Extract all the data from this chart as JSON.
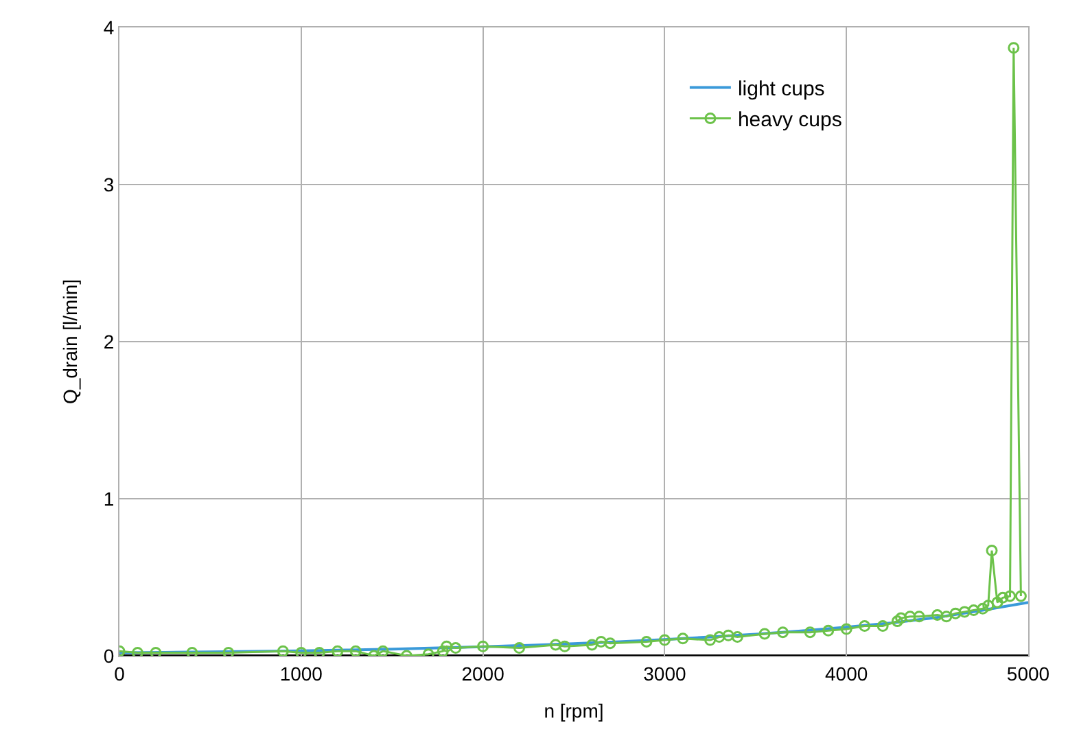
{
  "chart_data": {
    "type": "line",
    "xlabel": "n [rpm]",
    "ylabel": "Q_drain [l/min]",
    "xlim": [
      0,
      5000
    ],
    "ylim": [
      0,
      4
    ],
    "xticks": [
      0,
      1000,
      2000,
      3000,
      4000,
      5000
    ],
    "yticks": [
      0,
      1,
      2,
      3,
      4
    ],
    "grid": true,
    "legend": "top right",
    "series": [
      {
        "name": "light cups",
        "color": "#3a9ad9",
        "marker": "none",
        "x": [
          0,
          250,
          500,
          750,
          1000,
          1250,
          1500,
          1750,
          2000,
          2250,
          2500,
          2750,
          3000,
          3250,
          3500,
          3750,
          4000,
          4250,
          4500,
          4750,
          5000
        ],
        "values": [
          0.02,
          0.022,
          0.025,
          0.028,
          0.032,
          0.037,
          0.043,
          0.05,
          0.058,
          0.067,
          0.078,
          0.09,
          0.104,
          0.12,
          0.138,
          0.158,
          0.182,
          0.21,
          0.245,
          0.29,
          0.34
        ]
      },
      {
        "name": "heavy cups",
        "color": "#6cc24a",
        "marker": "circle",
        "x": [
          0,
          100,
          200,
          400,
          600,
          900,
          1000,
          1100,
          1200,
          1300,
          1400,
          1450,
          1580,
          1700,
          1780,
          1800,
          1850,
          2000,
          2200,
          2400,
          2450,
          2600,
          2650,
          2700,
          2900,
          3000,
          3100,
          3250,
          3300,
          3350,
          3400,
          3550,
          3650,
          3800,
          3900,
          4000,
          4100,
          4200,
          4280,
          4300,
          4350,
          4400,
          4500,
          4550,
          4600,
          4650,
          4700,
          4750,
          4780,
          4800,
          4830,
          4860,
          4900,
          4920,
          4960
        ],
        "values": [
          0.03,
          0.02,
          0.02,
          0.02,
          0.02,
          0.03,
          0.02,
          0.02,
          0.03,
          0.03,
          0.0,
          0.03,
          0.0,
          0.01,
          0.03,
          0.06,
          0.05,
          0.06,
          0.05,
          0.07,
          0.06,
          0.07,
          0.09,
          0.08,
          0.09,
          0.1,
          0.11,
          0.1,
          0.12,
          0.13,
          0.12,
          0.14,
          0.15,
          0.15,
          0.16,
          0.17,
          0.19,
          0.19,
          0.22,
          0.24,
          0.25,
          0.25,
          0.26,
          0.25,
          0.27,
          0.28,
          0.29,
          0.3,
          0.32,
          0.67,
          0.34,
          0.37,
          0.38,
          3.87,
          0.38
        ]
      }
    ]
  }
}
